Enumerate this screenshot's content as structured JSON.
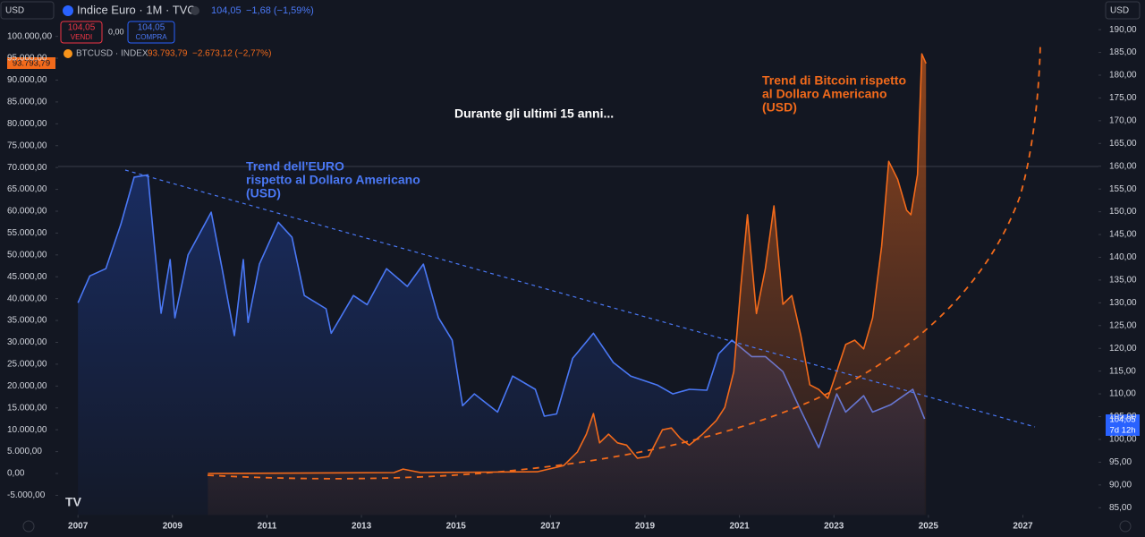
{
  "header": {
    "currency_left": "USD",
    "currency_right": "USD",
    "euro_last": "104,05",
    "euro_change": "−1,68 (−1,59%)",
    "sell_price": "104,05",
    "sell_label": "VENDI",
    "spread": "0,00",
    "buy_price": "104,05",
    "buy_label": "COMPRA",
    "btc_last": "93.793,79",
    "btc_change": "−2.673,12 (−2,77%)"
  },
  "price_tags": {
    "btc": "93.793,79",
    "euro": "104,05",
    "countdown": "7d 12h"
  },
  "chart_data": {
    "type": "line",
    "annotations": [
      [
        "Durante gli ultimi 15 anni..."
      ],
      [
        "Trend dell'EURO",
        "rispetto al Dollaro Americano",
        "(USD)"
      ],
      [
        "Trend di Bitcoin rispetto",
        "al Dollaro Americano",
        "(USD)"
      ]
    ],
    "xlim": [
      2006.58,
      2028.6
    ],
    "xticks": [
      2007,
      2009,
      2011,
      2013,
      2015,
      2017,
      2019,
      2021,
      2023,
      2025,
      2027
    ],
    "ylim": [
      -9500,
      103000
    ],
    "yticks": [
      {
        "value": 100000,
        "label": "100.000,00"
      },
      {
        "value": 95000,
        "label": "95.000,00"
      },
      {
        "value": 90000,
        "label": "90.000,00"
      },
      {
        "value": 85000,
        "label": "85.000,00"
      },
      {
        "value": 80000,
        "label": "80.000,00"
      },
      {
        "value": 75000,
        "label": "75.000,00"
      },
      {
        "value": 70000,
        "label": "70.000,00"
      },
      {
        "value": 65000,
        "label": "65.000,00"
      },
      {
        "value": 60000,
        "label": "60.000,00"
      },
      {
        "value": 55000,
        "label": "55.000,00"
      },
      {
        "value": 50000,
        "label": "50.000,00"
      },
      {
        "value": 45000,
        "label": "45.000,00"
      },
      {
        "value": 40000,
        "label": "40.000,00"
      },
      {
        "value": 35000,
        "label": "35.000,00"
      },
      {
        "value": 30000,
        "label": "30.000,00"
      },
      {
        "value": 25000,
        "label": "25.000,00"
      },
      {
        "value": 20000,
        "label": "20.000,00"
      },
      {
        "value": 15000,
        "label": "15.000,00"
      },
      {
        "value": 10000,
        "label": "10.000,00"
      },
      {
        "value": 5000,
        "label": "5.000,00"
      },
      {
        "value": 0,
        "label": "0,00"
      },
      {
        "value": -5000,
        "label": "-5.000,00"
      }
    ],
    "y2lim": [
      83.4,
      191.4
    ],
    "y2ticks": [
      {
        "value": 190,
        "label": "190,00"
      },
      {
        "value": 185,
        "label": "185,00"
      },
      {
        "value": 180,
        "label": "180,00"
      },
      {
        "value": 175,
        "label": "175,00"
      },
      {
        "value": 170,
        "label": "170,00"
      },
      {
        "value": 165,
        "label": "165,00"
      },
      {
        "value": 160,
        "label": "160,00"
      },
      {
        "value": 155,
        "label": "155,00"
      },
      {
        "value": 150,
        "label": "150,00"
      },
      {
        "value": 145,
        "label": "145,00"
      },
      {
        "value": 140,
        "label": "140,00"
      },
      {
        "value": 135,
        "label": "135,00"
      },
      {
        "value": 130,
        "label": "130,00"
      },
      {
        "value": 125,
        "label": "125,00"
      },
      {
        "value": 120,
        "label": "120,00"
      },
      {
        "value": 115,
        "label": "115,00"
      },
      {
        "value": 110,
        "label": "110,00"
      },
      {
        "value": 105,
        "label": "105,00"
      },
      {
        "value": 100,
        "label": "100,00"
      },
      {
        "value": 95,
        "label": "95,00"
      },
      {
        "value": 90,
        "label": "90,00"
      },
      {
        "value": 85,
        "label": "85,00"
      }
    ],
    "series": [
      {
        "name": "Indice Euro · 1M · TVC",
        "axis": "y2",
        "color": "#4a78f5",
        "x": [
          2007.0,
          2007.25,
          2007.59,
          2007.91,
          2008.19,
          2008.48,
          2008.61,
          2008.76,
          2008.95,
          2009.05,
          2009.33,
          2009.82,
          2010.05,
          2010.31,
          2010.5,
          2010.6,
          2010.84,
          2011.24,
          2011.53,
          2011.79,
          2012.25,
          2012.36,
          2012.83,
          2013.12,
          2013.53,
          2013.97,
          2014.31,
          2014.63,
          2014.92,
          2015.14,
          2015.39,
          2015.88,
          2016.2,
          2016.68,
          2016.87,
          2017.13,
          2017.47,
          2017.91,
          2018.33,
          2018.7,
          2019.27,
          2019.59,
          2019.94,
          2020.31,
          2020.56,
          2020.84,
          2021.26,
          2021.55,
          2021.92,
          2022.27,
          2022.68,
          2023.06,
          2023.25,
          2023.63,
          2023.82,
          2024.2,
          2024.67,
          2024.92
        ],
        "values": [
          130.0,
          135.9,
          137.5,
          147.3,
          157.6,
          158.1,
          143.4,
          127.7,
          139.5,
          126.7,
          140.5,
          149.9,
          137.5,
          122.8,
          139.5,
          125.7,
          138.5,
          147.7,
          144.4,
          131.6,
          128.7,
          123.3,
          131.6,
          129.6,
          137.5,
          133.6,
          138.5,
          126.7,
          121.8,
          107.4,
          110.0,
          106.0,
          113.9,
          111.0,
          105.1,
          105.6,
          117.8,
          123.3,
          116.9,
          113.9,
          111.9,
          110.0,
          111.0,
          110.8,
          118.8,
          121.8,
          118.2,
          118.2,
          114.9,
          107.0,
          98.2,
          110.0,
          106.0,
          109.6,
          106.0,
          107.6,
          111.0,
          104.5
        ]
      },
      {
        "name": "BTCUSD · INDEX",
        "color": "#f26a1b",
        "x": [
          2009.75,
          2013.69,
          2013.88,
          2014.25,
          2016.72,
          2017.28,
          2017.57,
          2017.76,
          2017.91,
          2018.04,
          2018.23,
          2018.42,
          2018.61,
          2018.84,
          2019.08,
          2019.37,
          2019.56,
          2019.75,
          2019.94,
          2020.22,
          2020.51,
          2020.69,
          2020.88,
          2021.03,
          2021.17,
          2021.36,
          2021.55,
          2021.73,
          2021.92,
          2022.11,
          2022.3,
          2022.49,
          2022.68,
          2022.87,
          2023.06,
          2023.25,
          2023.44,
          2023.63,
          2023.82,
          2024.01,
          2024.16,
          2024.35,
          2024.54,
          2024.63,
          2024.77,
          2024.86,
          2024.95
        ],
        "values": [
          0,
          200,
          1000,
          200,
          400,
          1800,
          4900,
          9000,
          13700,
          7000,
          9000,
          7000,
          6500,
          3500,
          3900,
          10000,
          10400,
          8000,
          6500,
          9000,
          12100,
          15100,
          23300,
          42800,
          59200,
          36600,
          46900,
          61200,
          38700,
          40700,
          31500,
          20300,
          19200,
          17200,
          23300,
          29500,
          30500,
          28500,
          35600,
          52000,
          71400,
          67300,
          60200,
          59200,
          68400,
          96000,
          93800
        ]
      }
    ]
  }
}
